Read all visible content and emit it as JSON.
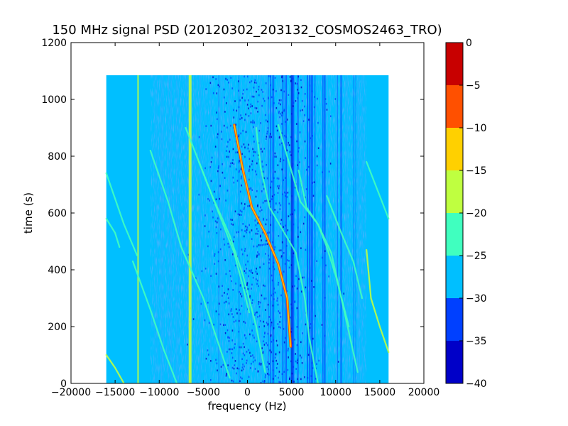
{
  "chart_data": {
    "type": "heatmap",
    "title": "150 MHz signal PSD (20120302_203132_COSMOS2463_TRO)",
    "xlabel": "frequency (Hz)",
    "ylabel": "time (s)",
    "xlim": [
      -20000,
      20000
    ],
    "ylim": [
      0,
      1200
    ],
    "x_ticks": [
      -20000,
      -15000,
      -10000,
      -5000,
      0,
      5000,
      10000,
      15000,
      20000
    ],
    "x_tick_labels": [
      "−20000",
      "−15000",
      "−10000",
      "−5000",
      "0",
      "5000",
      "10000",
      "15000",
      "20000"
    ],
    "y_ticks": [
      0,
      200,
      400,
      600,
      800,
      1000,
      1200
    ],
    "y_tick_labels": [
      "0",
      "200",
      "400",
      "600",
      "800",
      "1000",
      "1200"
    ],
    "data_extent": {
      "x": [
        -16000,
        16000
      ],
      "y": [
        0,
        1085
      ]
    },
    "colorbar": {
      "levels": [
        -40,
        -35,
        -30,
        -25,
        -20,
        -15,
        -10,
        -5,
        0
      ],
      "tick_labels": [
        "−40",
        "−35",
        "−30",
        "−25",
        "−20",
        "−15",
        "−10",
        "−5",
        "0"
      ],
      "colors": [
        "#0000c8",
        "#0040ff",
        "#00bfff",
        "#40ffbf",
        "#bfff40",
        "#ffd000",
        "#ff5000",
        "#c80000"
      ]
    },
    "background_level_color": "#00bfff",
    "features": {
      "vertical_lines_hz": [
        -12400,
        -6500,
        5000
      ],
      "strong_trace": {
        "color": "#ffd000",
        "points": [
          [
            -1500,
            910
          ],
          [
            -500,
            750
          ],
          [
            500,
            620
          ],
          [
            2000,
            530
          ],
          [
            3500,
            420
          ],
          [
            4500,
            300
          ],
          [
            4900,
            130
          ]
        ]
      }
    }
  }
}
